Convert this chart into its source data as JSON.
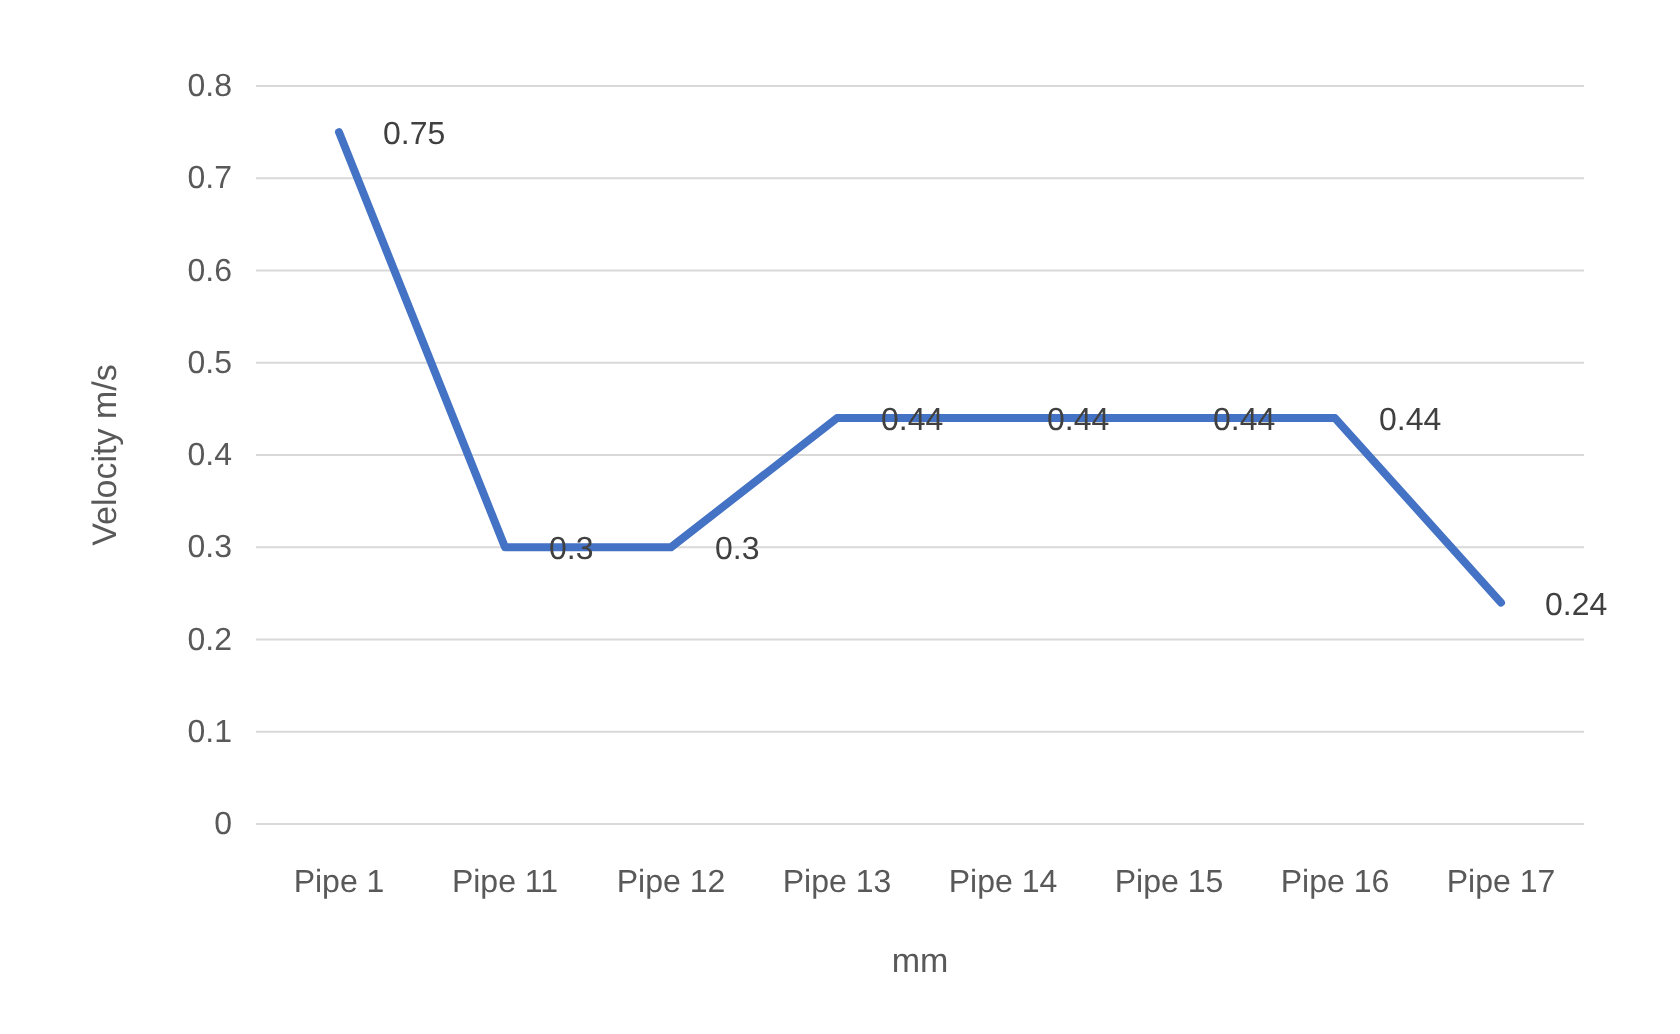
{
  "chart_data": {
    "type": "line",
    "xlabel": "mm",
    "ylabel": "Velocity m/s",
    "categories": [
      "Pipe 1",
      "Pipe 11",
      "Pipe 12",
      "Pipe 13",
      "Pipe 14",
      "Pipe 15",
      "Pipe 16",
      "Pipe 17"
    ],
    "series": [
      {
        "color": "#4472c4",
        "values": [
          0.75,
          0.3,
          0.3,
          0.44,
          0.44,
          0.44,
          0.44,
          0.24
        ]
      }
    ],
    "ylim": [
      0,
      0.8
    ],
    "yticks": [
      0,
      0.1,
      0.2,
      0.3,
      0.4,
      0.5,
      0.6,
      0.7,
      0.8
    ],
    "grid": "y",
    "data_labels": true,
    "marker": "none",
    "line_style": "solid"
  }
}
